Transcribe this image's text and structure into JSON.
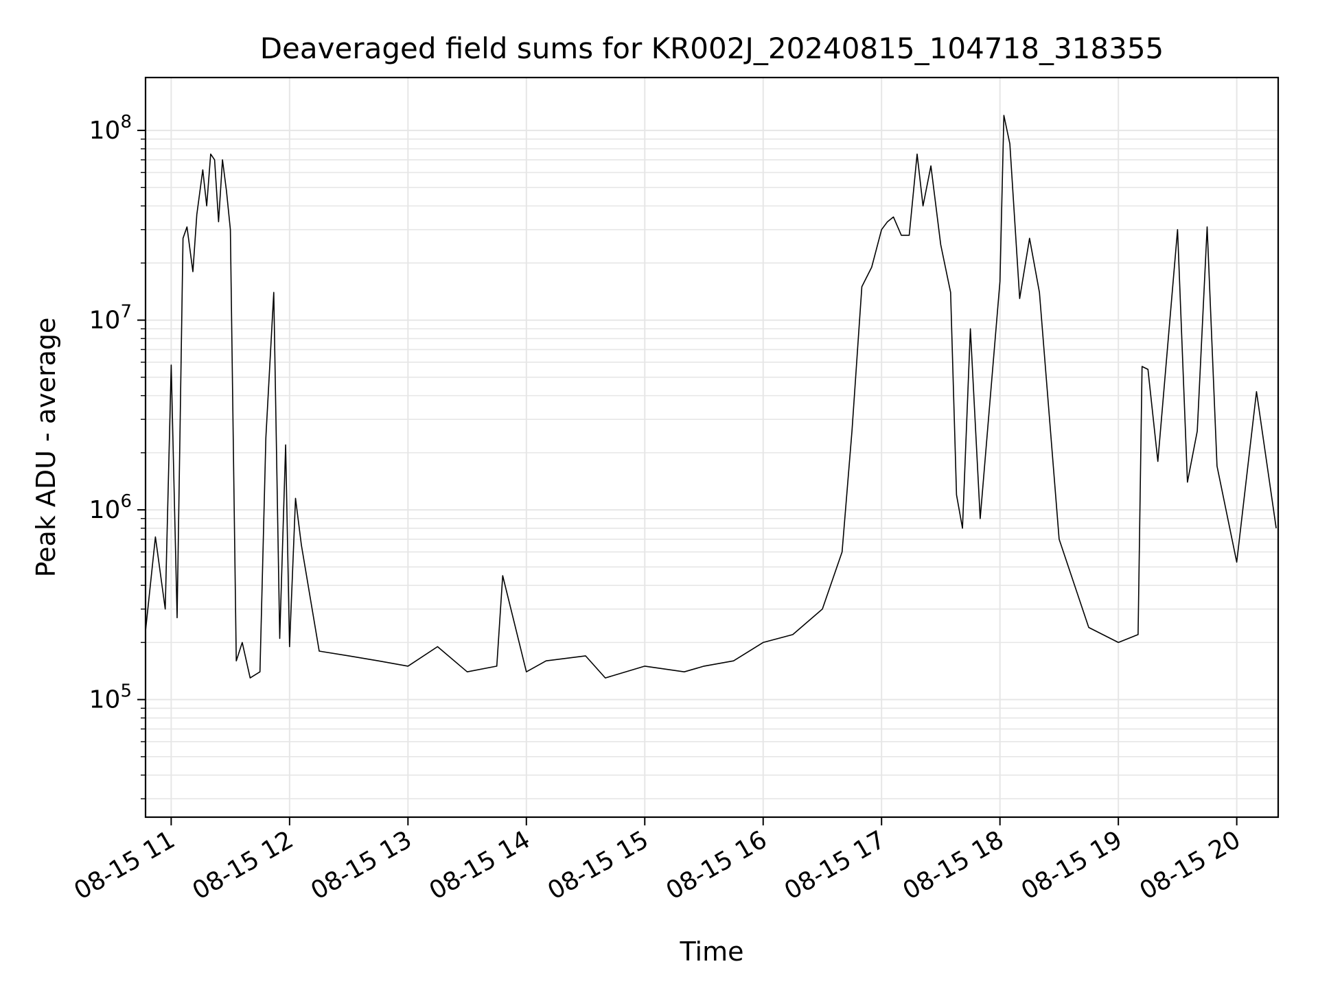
{
  "chart_data": {
    "type": "line",
    "title": "Deaveraged field sums for KR002J_20240815_104718_318355",
    "xlabel": "Time",
    "ylabel": "Peak ADU - average",
    "yscale": "log",
    "ylim": [
      24000,
      190000000
    ],
    "xlim": [
      "08-15 10:47",
      "08-15 20:21"
    ],
    "grid": true,
    "grid_color": "#e6e6e6",
    "line_color": "#000000",
    "x_ticks": [
      "08-15 11",
      "08-15 12",
      "08-15 13",
      "08-15 14",
      "08-15 15",
      "08-15 16",
      "08-15 17",
      "08-15 18",
      "08-15 19",
      "08-15 20"
    ],
    "y_ticks": [
      {
        "base": "10",
        "exp": "5"
      },
      {
        "base": "10",
        "exp": "6"
      },
      {
        "base": "10",
        "exp": "7"
      },
      {
        "base": "10",
        "exp": "8"
      }
    ],
    "series": [
      {
        "x": [
          "08-15 10:47",
          "08-15 10:52",
          "08-15 10:57",
          "08-15 11:00",
          "08-15 11:03",
          "08-15 11:06",
          "08-15 11:08",
          "08-15 11:11",
          "08-15 11:13",
          "08-15 11:16",
          "08-15 11:18",
          "08-15 11:20",
          "08-15 11:22",
          "08-15 11:24",
          "08-15 11:26",
          "08-15 11:28",
          "08-15 11:30",
          "08-15 11:33",
          "08-15 11:36",
          "08-15 11:40",
          "08-15 11:45",
          "08-15 11:48",
          "08-15 11:52",
          "08-15 11:55",
          "08-15 11:58",
          "08-15 12:00",
          "08-15 12:03",
          "08-15 12:06",
          "08-15 12:15",
          "08-15 12:30",
          "08-15 12:45",
          "08-15 13:00",
          "08-15 13:15",
          "08-15 13:30",
          "08-15 13:45",
          "08-15 13:48",
          "08-15 14:00",
          "08-15 14:10",
          "08-15 14:30",
          "08-15 14:40",
          "08-15 15:00",
          "08-15 15:20",
          "08-15 15:30",
          "08-15 15:45",
          "08-15 16:00",
          "08-15 16:15",
          "08-15 16:30",
          "08-15 16:40",
          "08-15 16:45",
          "08-15 16:50",
          "08-15 16:55",
          "08-15 17:00",
          "08-15 17:03",
          "08-15 17:06",
          "08-15 17:10",
          "08-15 17:14",
          "08-15 17:18",
          "08-15 17:21",
          "08-15 17:25",
          "08-15 17:30",
          "08-15 17:35",
          "08-15 17:38",
          "08-15 17:41",
          "08-15 17:45",
          "08-15 17:50",
          "08-15 18:00",
          "08-15 18:02",
          "08-15 18:05",
          "08-15 18:10",
          "08-15 18:15",
          "08-15 18:20",
          "08-15 18:30",
          "08-15 18:45",
          "08-15 19:00",
          "08-15 19:10",
          "08-15 19:12",
          "08-15 19:15",
          "08-15 19:20",
          "08-15 19:30",
          "08-15 19:35",
          "08-15 19:40",
          "08-15 19:45",
          "08-15 19:50",
          "08-15 20:00",
          "08-15 20:10",
          "08-15 20:20"
        ],
        "y": [
          230000,
          720000,
          300000,
          5800000,
          270000,
          27000000,
          31000000,
          18000000,
          36000000,
          62000000,
          40000000,
          75000000,
          70000000,
          33000000,
          70000000,
          48000000,
          30000000,
          160000,
          200000,
          130000,
          140000,
          2400000,
          14000000,
          210000,
          2200000,
          190000,
          1150000,
          650000,
          180000,
          170000,
          160000,
          150000,
          190000,
          140000,
          150000,
          450000,
          140000,
          160000,
          170000,
          130000,
          150000,
          140000,
          150000,
          160000,
          200000,
          220000,
          300000,
          600000,
          2600000,
          15000000,
          19000000,
          30000000,
          33000000,
          35000000,
          28000000,
          28000000,
          75000000,
          40000000,
          65000000,
          25000000,
          14000000,
          1200000,
          800000,
          9000000,
          900000,
          16000000,
          120000000,
          85000000,
          13000000,
          27000000,
          14000000,
          700000,
          240000,
          200000,
          220000,
          5700000,
          5500000,
          1800000,
          30000000,
          1400000,
          2600000,
          31000000,
          1700000,
          530000,
          4200000,
          800000
        ]
      }
    ]
  }
}
